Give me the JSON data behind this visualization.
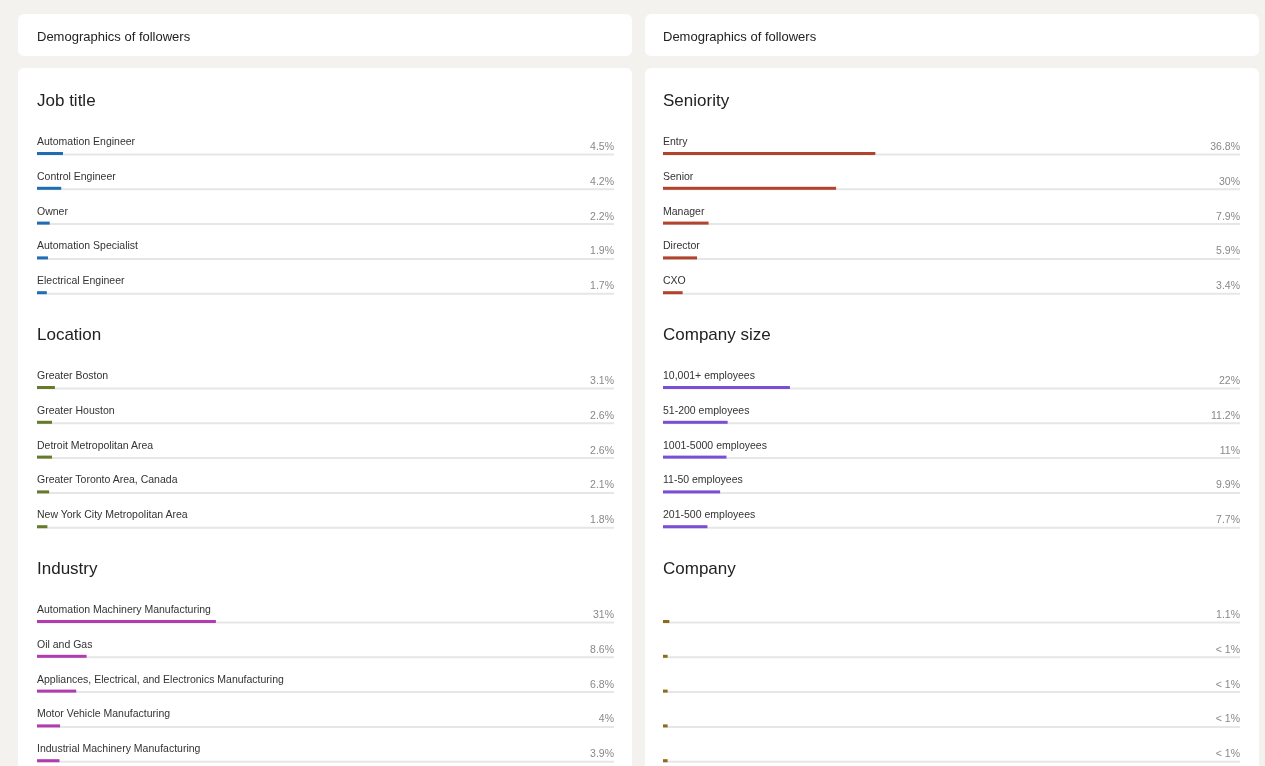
{
  "chart_data": [
    {
      "type": "bar",
      "orientation": "horizontal",
      "title": "Job title",
      "annotations": [
        "Demographics of followers"
      ],
      "categories": [
        "Automation Engineer",
        "Control Engineer",
        "Owner",
        "Automation Specialist",
        "Electrical Engineer"
      ],
      "values": [
        4.5,
        4.2,
        2.2,
        1.9,
        1.7
      ],
      "value_labels": [
        "4.5%",
        "4.2%",
        "2.2%",
        "1.9%",
        "1.7%"
      ],
      "color": "#1f6db3",
      "xlim": [
        0,
        100
      ],
      "tick_labels": false,
      "grid": true
    },
    {
      "type": "bar",
      "orientation": "horizontal",
      "title": "Location",
      "categories": [
        "Greater Boston",
        "Greater Houston",
        "Detroit Metropolitan Area",
        "Greater Toronto Area, Canada",
        "New York City Metropolitan Area"
      ],
      "values": [
        3.1,
        2.6,
        2.6,
        2.1,
        1.8
      ],
      "value_labels": [
        "3.1%",
        "2.6%",
        "2.6%",
        "2.1%",
        "1.8%"
      ],
      "color": "#667a2c",
      "xlim": [
        0,
        100
      ],
      "tick_labels": false,
      "grid": true
    },
    {
      "type": "bar",
      "orientation": "horizontal",
      "title": "Industry",
      "categories": [
        "Automation Machinery Manufacturing",
        "Oil and Gas",
        "Appliances, Electrical, and Electronics Manufacturing",
        "Motor Vehicle Manufacturing",
        "Industrial Machinery Manufacturing"
      ],
      "values": [
        31,
        8.6,
        6.8,
        4,
        3.9
      ],
      "value_labels": [
        "31%",
        "8.6%",
        "6.8%",
        "4%",
        "3.9%"
      ],
      "color": "#b23bb0",
      "xlim": [
        0,
        100
      ],
      "tick_labels": false,
      "grid": true
    },
    {
      "type": "bar",
      "orientation": "horizontal",
      "title": "Seniority",
      "annotations": [
        "Demographics of followers"
      ],
      "categories": [
        "Entry",
        "Senior",
        "Manager",
        "Director",
        "CXO"
      ],
      "values": [
        36.8,
        30,
        7.9,
        5.9,
        3.4
      ],
      "value_labels": [
        "36.8%",
        "30%",
        "7.9%",
        "5.9%",
        "3.4%"
      ],
      "color": "#b2432c",
      "xlim": [
        0,
        100
      ],
      "tick_labels": false,
      "grid": true
    },
    {
      "type": "bar",
      "orientation": "horizontal",
      "title": "Company size",
      "categories": [
        "10,001+ employees",
        "51-200 employees",
        "1001-5000 employees",
        "11-50 employees",
        "201-500 employees"
      ],
      "values": [
        22,
        11.2,
        11,
        9.9,
        7.7
      ],
      "value_labels": [
        "22%",
        "11.2%",
        "11%",
        "9.9%",
        "7.7%"
      ],
      "color": "#7a4fd6",
      "xlim": [
        0,
        100
      ],
      "tick_labels": false,
      "grid": true
    },
    {
      "type": "bar",
      "orientation": "horizontal",
      "title": "Company",
      "categories": [
        null,
        null,
        null,
        null,
        null
      ],
      "values": [
        1.1,
        0.8,
        0.8,
        0.8,
        0.8
      ],
      "value_labels": [
        "1.1%",
        "< 1%",
        "< 1%",
        "< 1%",
        "< 1%"
      ],
      "color": "#8c6b1c",
      "xlim": [
        0,
        100
      ],
      "tick_labels": false,
      "grid": true
    }
  ]
}
